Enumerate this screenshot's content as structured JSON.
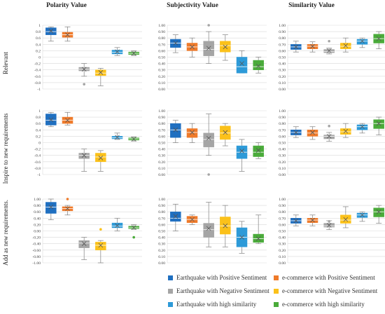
{
  "chart_data": {
    "type": "box",
    "columns": [
      "Polarity Value",
      "Subjectivity Value",
      "Similarity Value"
    ],
    "rows": [
      "Relevant",
      "Inspire to new requirements",
      "Add as new requirements."
    ],
    "legend": [
      "Earthquake with Positive Sentiment",
      "e-commerce with Positive Sentiment",
      "Earthquake with Negative Sentiment",
      "e-commerce with Negative Sentiment",
      "Earthquake with high similarity",
      "e-commerce with high similarity"
    ],
    "colors": [
      "#1f6fc0",
      "#ef7a2a",
      "#a5a5a5",
      "#fbc11a",
      "#2d9ad8",
      "#4aab3a"
    ],
    "axes": {
      "polarity_a": {
        "ylim": [
          -1,
          1
        ],
        "ticks": [
          "1",
          "0.8",
          "0.6",
          "0.4",
          "0.2",
          "0",
          "-0.2",
          "-0.4",
          "-0.6",
          "-0.8",
          "-1"
        ]
      },
      "polarity_b": {
        "ylim": [
          -1,
          1
        ],
        "ticks": [
          "1.00",
          "0.80",
          "0.60",
          "0.40",
          "0.20",
          "0.00",
          "-0.20",
          "-0.40",
          "-0.60",
          "-0.80",
          "-1.00"
        ]
      },
      "unit": {
        "ylim": [
          0,
          1
        ],
        "ticks": [
          "1.00",
          "0.90",
          "0.80",
          "0.70",
          "0.60",
          "0.50",
          "0.40",
          "0.30",
          "0.20",
          "0.10",
          "0.00"
        ]
      }
    },
    "panels": [
      [
        {
          "axis": "polarity_a",
          "boxes": [
            {
              "min": 0.5,
              "q1": 0.7,
              "median": 0.8,
              "q3": 0.92,
              "max": 0.95,
              "mean": 0.82
            },
            {
              "min": 0.5,
              "q1": 0.62,
              "median": 0.7,
              "q3": 0.78,
              "max": 0.95,
              "mean": 0.7
            },
            {
              "min": -0.6,
              "q1": -0.43,
              "median": -0.38,
              "q3": -0.32,
              "max": -0.2,
              "mean": -0.38,
              "outliers": [
                -0.85
              ]
            },
            {
              "min": -0.9,
              "q1": -0.58,
              "median": -0.5,
              "q3": -0.4,
              "max": -0.35,
              "mean": -0.48
            },
            {
              "min": 0.05,
              "q1": 0.1,
              "median": 0.15,
              "q3": 0.22,
              "max": 0.3,
              "mean": 0.17
            },
            {
              "min": 0.05,
              "q1": 0.08,
              "median": 0.12,
              "q3": 0.16,
              "max": 0.2,
              "mean": 0.12
            }
          ]
        },
        {
          "axis": "unit",
          "boxes": [
            {
              "min": 0.57,
              "q1": 0.65,
              "median": 0.72,
              "q3": 0.78,
              "max": 0.85,
              "mean": 0.72
            },
            {
              "min": 0.5,
              "q1": 0.6,
              "median": 0.66,
              "q3": 0.72,
              "max": 0.8,
              "mean": 0.66
            },
            {
              "min": 0.4,
              "q1": 0.52,
              "median": 0.62,
              "q3": 0.75,
              "max": 0.9,
              "mean": 0.64,
              "outliers": [
                1.0
              ]
            },
            {
              "min": 0.45,
              "q1": 0.58,
              "median": 0.68,
              "q3": 0.75,
              "max": 0.85,
              "mean": 0.66
            },
            {
              "min": 0.25,
              "q1": 0.25,
              "median": 0.35,
              "q3": 0.5,
              "max": 0.6,
              "mean": 0.4
            },
            {
              "min": 0.25,
              "q1": 0.3,
              "median": 0.35,
              "q3": 0.45,
              "max": 0.5,
              "mean": 0.36
            }
          ]
        },
        {
          "axis": "unit",
          "boxes": [
            {
              "min": 0.58,
              "q1": 0.62,
              "median": 0.66,
              "q3": 0.7,
              "max": 0.75,
              "mean": 0.66
            },
            {
              "min": 0.58,
              "q1": 0.63,
              "median": 0.67,
              "q3": 0.7,
              "max": 0.74,
              "mean": 0.67
            },
            {
              "min": 0.55,
              "q1": 0.57,
              "median": 0.59,
              "q3": 0.62,
              "max": 0.64,
              "mean": 0.6,
              "outliers": [
                0.75
              ]
            },
            {
              "min": 0.58,
              "q1": 0.63,
              "median": 0.67,
              "q3": 0.72,
              "max": 0.8,
              "mean": 0.68
            },
            {
              "min": 0.65,
              "q1": 0.7,
              "median": 0.75,
              "q3": 0.78,
              "max": 0.8,
              "mean": 0.75
            },
            {
              "min": 0.63,
              "q1": 0.72,
              "median": 0.79,
              "q3": 0.86,
              "max": 0.9,
              "mean": 0.79
            }
          ]
        }
      ],
      [
        {
          "axis": "polarity_a",
          "boxes": [
            {
              "min": 0.5,
              "q1": 0.55,
              "median": 0.7,
              "q3": 0.9,
              "max": 0.95,
              "mean": 0.72
            },
            {
              "min": 0.55,
              "q1": 0.6,
              "median": 0.7,
              "q3": 0.8,
              "max": 0.95,
              "mean": 0.7
            },
            {
              "min": -0.9,
              "q1": -0.5,
              "median": -0.4,
              "q3": -0.33,
              "max": -0.2,
              "mean": -0.4
            },
            {
              "min": -0.9,
              "q1": -0.6,
              "median": -0.45,
              "q3": -0.33,
              "max": -0.25,
              "mean": -0.48
            },
            {
              "min": 0.1,
              "q1": 0.12,
              "median": 0.15,
              "q3": 0.2,
              "max": 0.3,
              "mean": 0.17
            },
            {
              "min": 0.05,
              "q1": 0.08,
              "median": 0.12,
              "q3": 0.15,
              "max": 0.18,
              "mean": 0.11
            }
          ]
        },
        {
          "axis": "unit",
          "boxes": [
            {
              "min": 0.5,
              "q1": 0.58,
              "median": 0.7,
              "q3": 0.8,
              "max": 0.85,
              "mean": 0.7
            },
            {
              "min": 0.5,
              "q1": 0.58,
              "median": 0.66,
              "q3": 0.72,
              "max": 0.8,
              "mean": 0.66
            },
            {
              "min": 0.3,
              "q1": 0.43,
              "median": 0.55,
              "q3": 0.65,
              "max": 0.95,
              "mean": 0.57,
              "outliers": [
                0.0
              ]
            },
            {
              "min": 0.45,
              "q1": 0.55,
              "median": 0.65,
              "q3": 0.76,
              "max": 0.8,
              "mean": 0.66
            },
            {
              "min": 0.05,
              "q1": 0.25,
              "median": 0.35,
              "q3": 0.45,
              "max": 0.55,
              "mean": 0.37
            },
            {
              "min": 0.25,
              "q1": 0.28,
              "median": 0.35,
              "q3": 0.45,
              "max": 0.5,
              "mean": 0.38
            }
          ]
        },
        {
          "axis": "unit",
          "boxes": [
            {
              "min": 0.58,
              "q1": 0.62,
              "median": 0.66,
              "q3": 0.7,
              "max": 0.75,
              "mean": 0.66
            },
            {
              "min": 0.55,
              "q1": 0.6,
              "median": 0.65,
              "q3": 0.7,
              "max": 0.75,
              "mean": 0.66
            },
            {
              "min": 0.52,
              "q1": 0.56,
              "median": 0.6,
              "q3": 0.62,
              "max": 0.66,
              "mean": 0.6,
              "outliers": [
                0.76
              ]
            },
            {
              "min": 0.58,
              "q1": 0.63,
              "median": 0.67,
              "q3": 0.72,
              "max": 0.8,
              "mean": 0.68
            },
            {
              "min": 0.65,
              "q1": 0.7,
              "median": 0.75,
              "q3": 0.78,
              "max": 0.8,
              "mean": 0.75
            },
            {
              "min": 0.62,
              "q1": 0.72,
              "median": 0.8,
              "q3": 0.86,
              "max": 0.9,
              "mean": 0.8
            }
          ]
        }
      ],
      [
        {
          "axis": "polarity_b",
          "boxes": [
            {
              "min": 0.35,
              "q1": 0.55,
              "median": 0.75,
              "q3": 0.9,
              "max": 1.0,
              "mean": 0.75
            },
            {
              "min": 0.5,
              "q1": 0.63,
              "median": 0.7,
              "q3": 0.76,
              "max": 0.8,
              "mean": 0.7,
              "outliers": [
                1.0
              ]
            },
            {
              "min": -0.9,
              "q1": -0.53,
              "median": -0.38,
              "q3": -0.3,
              "max": -0.2,
              "mean": -0.4
            },
            {
              "min": -1.0,
              "q1": -0.6,
              "median": -0.45,
              "q3": -0.35,
              "max": -0.3,
              "mean": -0.45,
              "outliers": [
                0.05
              ]
            },
            {
              "min": 0.0,
              "q1": 0.1,
              "median": 0.15,
              "q3": 0.25,
              "max": 0.4,
              "mean": 0.17
            },
            {
              "min": 0.05,
              "q1": 0.07,
              "median": 0.1,
              "q3": 0.15,
              "max": 0.2,
              "mean": 0.11,
              "outliers": [
                -0.2
              ]
            }
          ]
        },
        {
          "axis": "unit",
          "boxes": [
            {
              "min": 0.5,
              "q1": 0.65,
              "median": 0.7,
              "q3": 0.8,
              "max": 0.92,
              "mean": 0.73
            },
            {
              "min": 0.6,
              "q1": 0.63,
              "median": 0.68,
              "q3": 0.73,
              "max": 0.75,
              "mean": 0.68
            },
            {
              "min": 0.25,
              "q1": 0.4,
              "median": 0.52,
              "q3": 0.62,
              "max": 0.95,
              "mean": 0.54
            },
            {
              "min": 0.25,
              "q1": 0.45,
              "median": 0.58,
              "q3": 0.72,
              "max": 0.9,
              "mean": 0.58
            },
            {
              "min": 0.15,
              "q1": 0.25,
              "median": 0.4,
              "q3": 0.55,
              "max": 0.65,
              "mean": 0.4
            },
            {
              "min": 0.3,
              "q1": 0.32,
              "median": 0.38,
              "q3": 0.45,
              "max": 0.75,
              "mean": 0.38
            }
          ]
        },
        {
          "axis": "unit",
          "boxes": [
            {
              "min": 0.58,
              "q1": 0.62,
              "median": 0.66,
              "q3": 0.7,
              "max": 0.75,
              "mean": 0.66
            },
            {
              "min": 0.58,
              "q1": 0.63,
              "median": 0.67,
              "q3": 0.7,
              "max": 0.75,
              "mean": 0.67
            },
            {
              "min": 0.52,
              "q1": 0.56,
              "median": 0.58,
              "q3": 0.62,
              "max": 0.66,
              "mean": 0.59,
              "outliers": [
                0.65
              ]
            },
            {
              "min": 0.55,
              "q1": 0.62,
              "median": 0.67,
              "q3": 0.75,
              "max": 0.88,
              "mean": 0.68
            },
            {
              "min": 0.65,
              "q1": 0.71,
              "median": 0.75,
              "q3": 0.78,
              "max": 0.8,
              "mean": 0.75
            },
            {
              "min": 0.62,
              "q1": 0.72,
              "median": 0.8,
              "q3": 0.86,
              "max": 0.9,
              "mean": 0.8
            }
          ]
        }
      ]
    ]
  }
}
